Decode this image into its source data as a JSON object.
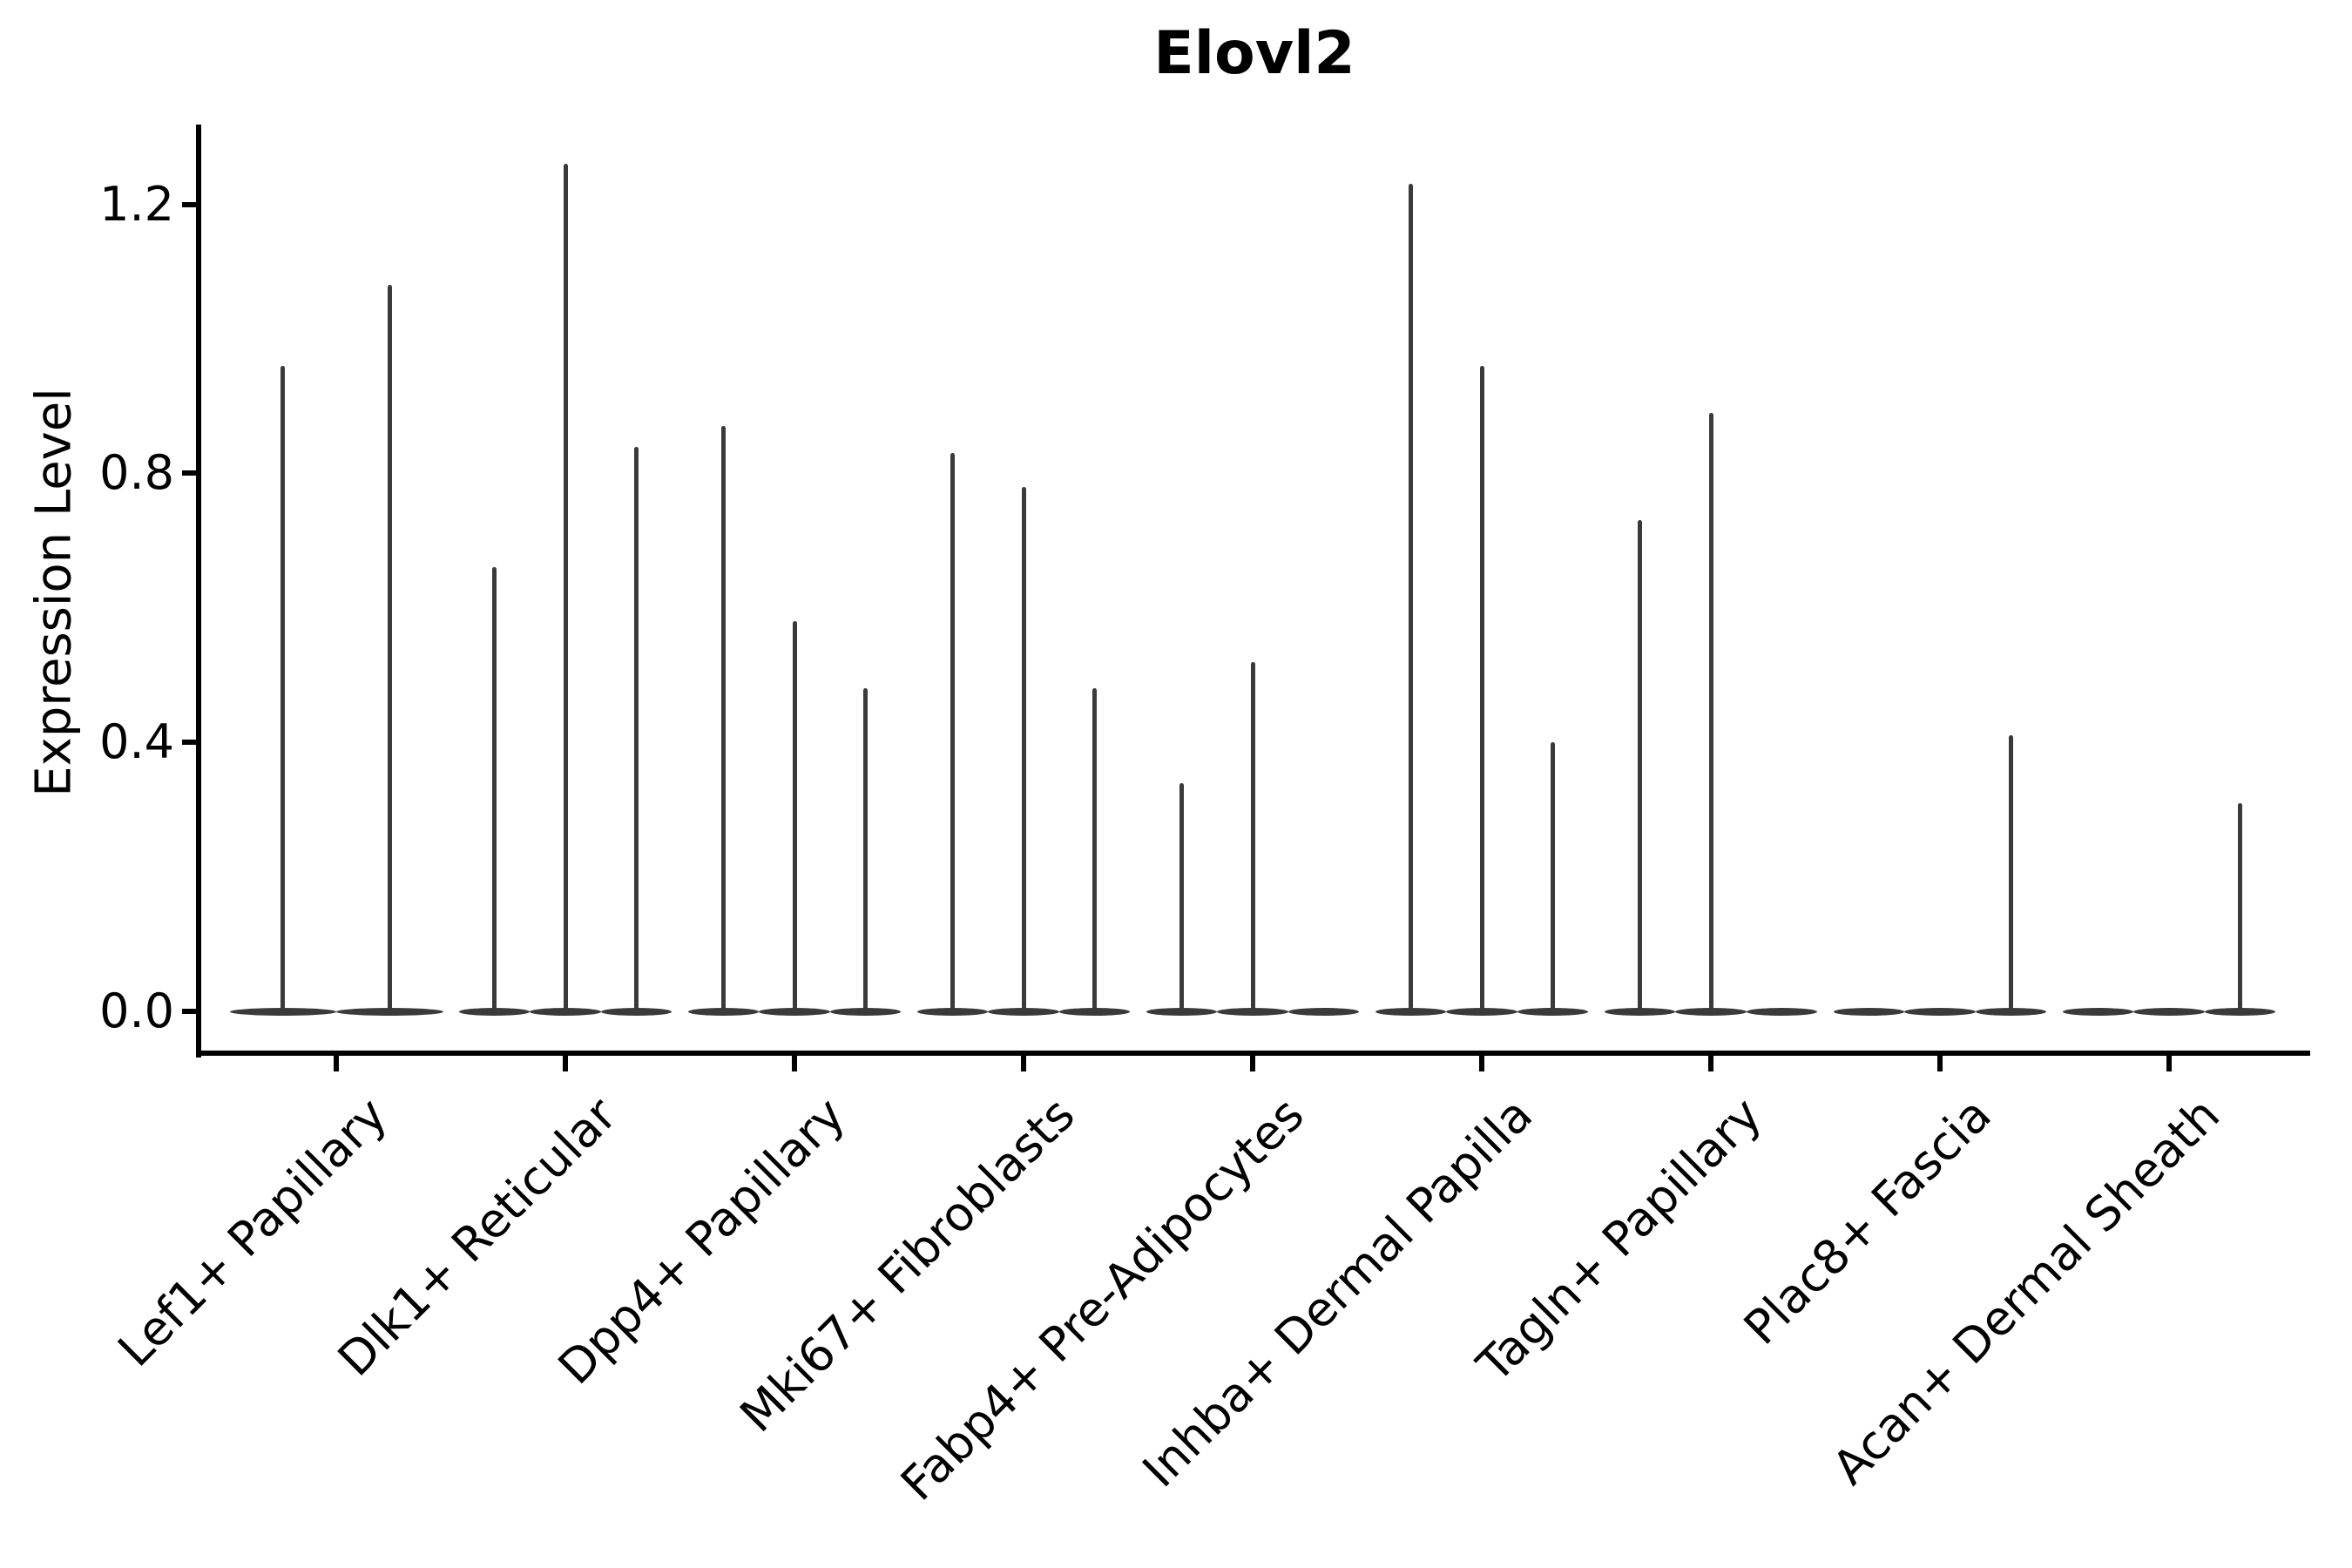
{
  "chart_data": {
    "type": "violin",
    "title": "Elovl2",
    "ylabel": "Expression Level",
    "xlabel": "",
    "yticks": [
      0.0,
      0.4,
      0.8,
      1.2
    ],
    "ylim": [
      -0.06,
      1.32
    ],
    "grid": false,
    "legend": "none",
    "violin_color": "#3a3a3a",
    "axis_color": "#000000",
    "background_color": "#ffffff",
    "categories": [
      "Lef1+ Papillary",
      "Dlk1+ Reticular",
      "Dpp4+ Papillary",
      "Mki67+ Fibroblasts",
      "Fabp4+ Pre-Adipocytes",
      "Inhba+ Dermal Papilla",
      "Tagln+ Papillary",
      "Plac8+ Fascia",
      "Acan+ Dermal Sheath"
    ],
    "groups": [
      {
        "label": "Lef1+ Papillary",
        "n_violins": 2,
        "violins": [
          {
            "slot": 0,
            "max": 0.96
          },
          {
            "slot": 1,
            "max": 1.08
          }
        ]
      },
      {
        "label": "Dlk1+ Reticular",
        "n_violins": 3,
        "violins": [
          {
            "slot": 0,
            "max": 0.66
          },
          {
            "slot": 1,
            "max": 1.26
          },
          {
            "slot": 2,
            "max": 0.84
          }
        ]
      },
      {
        "label": "Dpp4+ Papillary",
        "n_violins": 3,
        "violins": [
          {
            "slot": 0,
            "max": 0.87
          },
          {
            "slot": 1,
            "max": 0.58
          },
          {
            "slot": 2,
            "max": 0.48
          }
        ]
      },
      {
        "label": "Mki67+ Fibroblasts",
        "n_violins": 3,
        "violins": [
          {
            "slot": 0,
            "max": 0.83
          },
          {
            "slot": 1,
            "max": 0.78
          },
          {
            "slot": 2,
            "max": 0.48
          }
        ]
      },
      {
        "label": "Fabp4+ Pre-Adipocytes",
        "n_violins": 3,
        "violins": [
          {
            "slot": 0,
            "max": 0.34
          },
          {
            "slot": 1,
            "max": 0.52
          }
        ]
      },
      {
        "label": "Inhba+ Dermal Papilla",
        "n_violins": 3,
        "violins": [
          {
            "slot": 0,
            "max": 1.23
          },
          {
            "slot": 1,
            "max": 0.96
          },
          {
            "slot": 2,
            "max": 0.4
          }
        ]
      },
      {
        "label": "Tagln+ Papillary",
        "n_violins": 3,
        "violins": [
          {
            "slot": 0,
            "max": 0.73
          },
          {
            "slot": 1,
            "max": 0.89
          }
        ]
      },
      {
        "label": "Plac8+ Fascia",
        "n_violins": 3,
        "violins": [
          {
            "slot": 2,
            "max": 0.41
          }
        ]
      },
      {
        "label": "Acan+ Dermal Sheath",
        "n_violins": 3,
        "violins": [
          {
            "slot": 2,
            "max": 0.31
          }
        ]
      }
    ]
  }
}
